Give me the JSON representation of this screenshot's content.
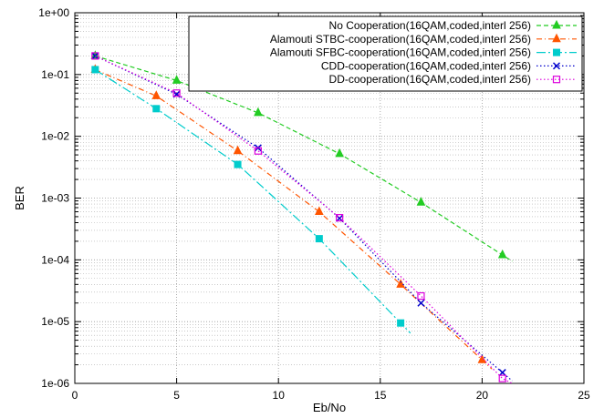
{
  "chart_data": {
    "type": "line",
    "title": "",
    "xlabel": "Eb/No",
    "ylabel": "BER",
    "xlim": [
      0,
      25
    ],
    "ylim": [
      1e-06,
      1
    ],
    "yscale": "log",
    "grid": true,
    "legend_position": "top-right",
    "x_ticks": [
      "0",
      "5",
      "10",
      "15",
      "20",
      "25"
    ],
    "y_ticks": [
      "1e-06",
      "1e-05",
      "1e-04",
      "1e-03",
      "1e-02",
      "1e-01",
      "1e+00"
    ],
    "series": [
      {
        "name": "No Cooperation(16QAM,coded,interl 256)",
        "color": "#22cc22",
        "marker": "triangle",
        "dash": "dashed",
        "x": [
          1,
          5,
          9,
          13,
          17,
          21
        ],
        "y": [
          0.2,
          0.08,
          0.024,
          0.0052,
          0.00085,
          0.00012
        ]
      },
      {
        "name": "Alamouti STBC-cooperation(16QAM,coded,interl 256)",
        "color": "#ff5500",
        "marker": "triangle",
        "dash": "dash-dot",
        "x": [
          1,
          4,
          8,
          12,
          16,
          20
        ],
        "y": [
          0.12,
          0.045,
          0.0058,
          0.0006,
          4e-05,
          2.4e-06
        ]
      },
      {
        "name": "Alamouti SFBC-cooperation(16QAM,coded,interl 256)",
        "color": "#00cccc",
        "marker": "square",
        "dash": "long-dash-dot",
        "x": [
          1,
          4,
          8,
          12,
          16
        ],
        "y": [
          0.12,
          0.028,
          0.0035,
          0.00022,
          9.5e-06
        ]
      },
      {
        "name": "CDD-cooperation(16QAM,coded,interl 256)",
        "color": "#0000cc",
        "marker": "x",
        "dash": "dotted",
        "x": [
          1,
          5,
          9,
          13,
          17,
          21
        ],
        "y": [
          0.2,
          0.048,
          0.0065,
          0.00047,
          2e-05,
          1.5e-06
        ]
      },
      {
        "name": "DD-cooperation(16QAM,coded,interl 256)",
        "color": "#dd00dd",
        "marker": "open-square",
        "dash": "dotted",
        "x": [
          1,
          5,
          9,
          13,
          17,
          21
        ],
        "y": [
          0.2,
          0.05,
          0.0058,
          0.00048,
          2.6e-05,
          1.2e-06
        ]
      }
    ]
  }
}
